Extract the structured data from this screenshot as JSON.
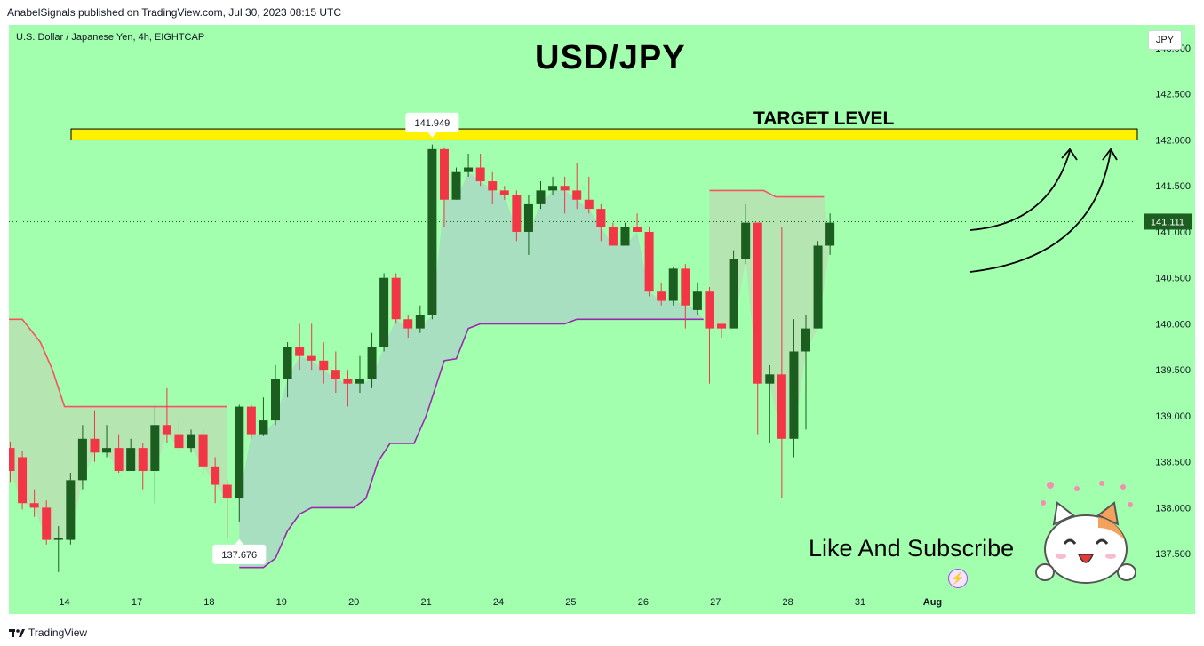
{
  "header": {
    "published_text": "AnabelSignals published on TradingView.com, Jul 30, 2023 08:15 UTC"
  },
  "footer": {
    "brand": "TradingView"
  },
  "chart_header": {
    "symbol_description": "U.S. Dollar / Japanese Yen, 4h, EIGHTCAP",
    "currency_button": "JPY"
  },
  "annotations": {
    "title": "USD/JPY",
    "target_label": "TARGET LEVEL",
    "subscribe_text": "Like And Subscribe"
  },
  "colors": {
    "background": "#a1ffae",
    "bull_candle": "#1b5e20",
    "bear_candle": "#f23645",
    "target_band": "#fff100",
    "cloud_upper_line": "#f7525f",
    "cloud_lower_line": "#9c27b0"
  },
  "icons": {
    "footer_logo": "tradingview-logo-icon",
    "bolt": "lightning-bolt-icon",
    "mascot": "cat-mascot-icon"
  },
  "chart_data": {
    "type": "candlestick",
    "title": "USD/JPY",
    "symbol": "U.S. Dollar / Japanese Yen",
    "timeframe": "4h",
    "y_axis": {
      "side": "right",
      "range": [
        137.25,
        143.0
      ],
      "ticks": [
        "143.000",
        "142.500",
        "142.000",
        "141.500",
        "141.000",
        "140.500",
        "140.000",
        "139.500",
        "139.000",
        "138.500",
        "138.000",
        "137.500"
      ],
      "tick_values": [
        143.0,
        142.5,
        142.0,
        141.5,
        141.0,
        140.5,
        140.0,
        139.5,
        139.0,
        138.5,
        138.0,
        137.5
      ]
    },
    "x_axis": {
      "bar_range": [
        0,
        88
      ],
      "ticks": [
        {
          "label": "14",
          "bar": 4.5
        },
        {
          "label": "17",
          "bar": 10.5
        },
        {
          "label": "18",
          "bar": 16.5
        },
        {
          "label": "19",
          "bar": 22.5
        },
        {
          "label": "20",
          "bar": 28.5
        },
        {
          "label": "21",
          "bar": 34.5
        },
        {
          "label": "24",
          "bar": 40.5
        },
        {
          "label": "25",
          "bar": 46.5
        },
        {
          "label": "26",
          "bar": 52.5
        },
        {
          "label": "27",
          "bar": 58.5
        },
        {
          "label": "28",
          "bar": 64.5
        },
        {
          "label": "31",
          "bar": 70.5
        },
        {
          "label": "Aug",
          "bar": 76.5
        }
      ]
    },
    "current_price": {
      "label": "141.111",
      "value": 141.111
    },
    "high_label": {
      "label": "141.949",
      "value": 141.949,
      "bar": 35
    },
    "low_label": {
      "label": "137.676",
      "value": 137.676,
      "bar": 19
    },
    "target_level": [
      142.0,
      142.12
    ],
    "candles": [
      [
        0,
        138.65,
        138.4,
        138.72,
        138.28
      ],
      [
        1,
        138.55,
        138.05,
        138.62,
        137.98
      ],
      [
        2,
        138.05,
        138.0,
        138.2,
        137.9
      ],
      [
        3,
        138.0,
        137.65,
        138.08,
        137.6
      ],
      [
        4,
        137.65,
        137.67,
        137.8,
        137.3
      ],
      [
        5,
        137.65,
        138.3,
        138.38,
        137.6
      ],
      [
        6,
        138.3,
        138.75,
        138.9,
        138.2
      ],
      [
        7,
        138.75,
        138.6,
        139.06,
        138.5
      ],
      [
        8,
        138.6,
        138.65,
        138.9,
        138.55
      ],
      [
        9,
        138.65,
        138.4,
        138.8,
        138.38
      ],
      [
        10,
        138.4,
        138.65,
        138.75,
        138.4
      ],
      [
        11,
        138.65,
        138.4,
        138.7,
        138.2
      ],
      [
        12,
        138.4,
        138.9,
        139.1,
        138.05
      ],
      [
        13,
        138.9,
        138.8,
        139.3,
        138.7
      ],
      [
        14,
        138.8,
        138.65,
        138.95,
        138.55
      ],
      [
        15,
        138.65,
        138.8,
        138.85,
        138.6
      ],
      [
        16,
        138.8,
        138.45,
        138.85,
        138.35
      ],
      [
        17,
        138.45,
        138.25,
        138.55,
        138.05
      ],
      [
        18,
        138.25,
        138.1,
        138.3,
        137.68
      ],
      [
        19,
        138.1,
        139.1,
        139.12,
        137.85
      ],
      [
        20,
        139.1,
        138.8,
        139.12,
        138.75
      ],
      [
        21,
        138.8,
        138.95,
        139.2,
        138.78
      ],
      [
        22,
        138.95,
        139.4,
        139.55,
        138.9
      ],
      [
        23,
        139.4,
        139.75,
        139.8,
        139.2
      ],
      [
        24,
        139.75,
        139.65,
        140.0,
        139.5
      ],
      [
        25,
        139.65,
        139.6,
        140.0,
        139.5
      ],
      [
        26,
        139.6,
        139.5,
        139.8,
        139.35
      ],
      [
        27,
        139.5,
        139.4,
        139.7,
        139.25
      ],
      [
        28,
        139.4,
        139.35,
        139.5,
        139.1
      ],
      [
        29,
        139.35,
        139.4,
        139.65,
        139.25
      ],
      [
        30,
        139.4,
        139.75,
        139.9,
        139.3
      ],
      [
        31,
        139.75,
        140.5,
        140.55,
        139.7
      ],
      [
        32,
        140.5,
        140.05,
        140.55,
        140.0
      ],
      [
        33,
        140.05,
        139.95,
        140.1,
        139.85
      ],
      [
        34,
        139.95,
        140.1,
        140.2,
        139.9
      ],
      [
        35,
        140.1,
        141.9,
        141.95,
        140.05
      ],
      [
        36,
        141.9,
        141.35,
        141.92,
        141.05
      ],
      [
        37,
        141.35,
        141.65,
        141.7,
        141.35
      ],
      [
        38,
        141.65,
        141.7,
        141.85,
        141.6
      ],
      [
        39,
        141.7,
        141.55,
        141.85,
        141.5
      ],
      [
        40,
        141.55,
        141.45,
        141.65,
        141.3
      ],
      [
        41,
        141.45,
        141.4,
        141.5,
        141.35
      ],
      [
        42,
        141.4,
        141.0,
        141.45,
        140.9
      ],
      [
        43,
        141.0,
        141.3,
        141.4,
        140.75
      ],
      [
        44,
        141.3,
        141.45,
        141.55,
        141.25
      ],
      [
        45,
        141.45,
        141.5,
        141.6,
        141.4
      ],
      [
        46,
        141.5,
        141.45,
        141.6,
        141.2
      ],
      [
        47,
        141.45,
        141.35,
        141.75,
        141.25
      ],
      [
        48,
        141.35,
        141.25,
        141.6,
        141.2
      ],
      [
        49,
        141.25,
        141.05,
        141.3,
        140.9
      ],
      [
        50,
        141.05,
        140.85,
        141.1,
        140.85
      ],
      [
        51,
        140.85,
        141.05,
        141.1,
        140.9
      ],
      [
        52,
        141.05,
        141.0,
        141.2,
        141.0
      ],
      [
        53,
        141.0,
        140.35,
        141.05,
        140.3
      ],
      [
        54,
        140.35,
        140.25,
        140.45,
        140.2
      ],
      [
        55,
        140.25,
        140.6,
        140.62,
        140.2
      ],
      [
        56,
        140.6,
        140.2,
        140.65,
        139.95
      ],
      [
        57,
        140.15,
        140.35,
        140.45,
        140.1
      ],
      [
        58,
        140.35,
        139.95,
        140.4,
        139.35
      ],
      [
        59,
        140.0,
        139.95,
        140.0,
        139.85
      ],
      [
        60,
        139.95,
        140.7,
        140.8,
        139.95
      ],
      [
        61,
        140.7,
        141.1,
        141.3,
        140.65
      ],
      [
        62,
        141.1,
        139.35,
        141.1,
        138.8
      ],
      [
        63,
        139.35,
        139.45,
        139.55,
        138.7
      ],
      [
        64,
        139.45,
        138.75,
        141.05,
        138.1
      ],
      [
        65,
        138.75,
        139.7,
        140.05,
        138.55
      ],
      [
        66,
        139.7,
        139.95,
        140.1,
        138.85
      ],
      [
        67,
        139.95,
        140.85,
        140.9,
        139.95
      ],
      [
        68,
        140.85,
        141.1,
        141.2,
        140.75
      ]
    ],
    "cloud": {
      "upper_segments": [
        [
          [
            -0.5,
            140.05
          ],
          [
            1.0,
            140.05
          ],
          [
            2.5,
            139.8
          ],
          [
            3.5,
            139.5
          ],
          [
            4.5,
            139.1
          ],
          [
            18.0,
            139.1
          ]
        ],
        [
          [
            58.0,
            141.45
          ],
          [
            62.5,
            141.45
          ],
          [
            63.5,
            141.38
          ],
          [
            67.5,
            141.38
          ]
        ]
      ],
      "lower_line": [
        [
          19.0,
          137.35
        ],
        [
          21.0,
          137.35
        ],
        [
          22.0,
          137.45
        ],
        [
          23.0,
          137.75
        ],
        [
          24.0,
          137.93
        ],
        [
          25.0,
          138.0
        ],
        [
          28.5,
          138.0
        ],
        [
          29.5,
          138.1
        ],
        [
          30.5,
          138.5
        ],
        [
          31.5,
          138.7
        ],
        [
          33.5,
          138.7
        ],
        [
          34.5,
          139.0
        ],
        [
          36.0,
          139.6
        ],
        [
          37.0,
          139.62
        ],
        [
          38.0,
          139.95
        ],
        [
          39.0,
          140.0
        ],
        [
          42.5,
          140.0
        ],
        [
          44.0,
          140.0
        ],
        [
          46.0,
          140.0
        ],
        [
          47.0,
          140.05
        ],
        [
          57.5,
          140.05
        ]
      ]
    }
  }
}
